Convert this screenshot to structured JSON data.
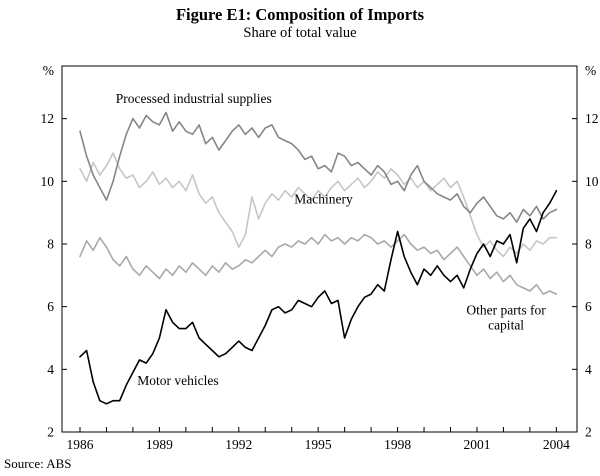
{
  "header": {
    "title": "Figure E1: Composition of Imports",
    "subtitle": "Share of total value"
  },
  "source": {
    "text": "Source: ABS"
  },
  "chart_data": {
    "type": "line",
    "title": "Figure E1: Composition of Imports",
    "subtitle": "Share of total value",
    "xlabel": "",
    "ylabel": "%",
    "grid": false,
    "legend": "inline-labels",
    "xlim": [
      1985.32,
      2004.78
    ],
    "ylim": [
      2,
      13.68
    ],
    "y_ticks": [
      2,
      4,
      6,
      8,
      10,
      12
    ],
    "x_ticks_labeled": [
      1986,
      1989,
      1992,
      1995,
      1998,
      2001,
      2004
    ],
    "x_ticks_minor": [
      1986,
      1987,
      1988,
      1989,
      1990,
      1991,
      1992,
      1993,
      1994,
      1995,
      1996,
      1997,
      1998,
      1999,
      2000,
      2001,
      2002,
      2003,
      2004
    ],
    "x": [
      1986,
      1986.25,
      1986.5,
      1986.75,
      1987,
      1987.25,
      1987.5,
      1987.75,
      1988,
      1988.25,
      1988.5,
      1988.75,
      1989,
      1989.25,
      1989.5,
      1989.75,
      1990,
      1990.25,
      1990.5,
      1990.75,
      1991,
      1991.25,
      1991.5,
      1991.75,
      1992,
      1992.25,
      1992.5,
      1992.75,
      1993,
      1993.25,
      1993.5,
      1993.75,
      1994,
      1994.25,
      1994.5,
      1994.75,
      1995,
      1995.25,
      1995.5,
      1995.75,
      1996,
      1996.25,
      1996.5,
      1996.75,
      1997,
      1997.25,
      1997.5,
      1997.75,
      1998,
      1998.25,
      1998.5,
      1998.75,
      1999,
      1999.25,
      1999.5,
      1999.75,
      2000,
      2000.25,
      2000.5,
      2000.75,
      2001,
      2001.25,
      2001.5,
      2001.75,
      2002,
      2002.25,
      2002.5,
      2002.75,
      2003,
      2003.25,
      2003.5,
      2003.75,
      2004
    ],
    "series": [
      {
        "name": "Machinery",
        "color": "#c6c6c6",
        "values": [
          10.4,
          10.0,
          10.6,
          10.2,
          10.5,
          10.9,
          10.4,
          10.1,
          10.2,
          9.8,
          10.0,
          10.3,
          9.9,
          10.1,
          9.8,
          10.0,
          9.7,
          10.2,
          9.6,
          9.3,
          9.5,
          9.0,
          8.7,
          8.4,
          7.9,
          8.3,
          9.5,
          8.8,
          9.3,
          9.6,
          9.4,
          9.7,
          9.5,
          9.8,
          9.6,
          9.4,
          9.7,
          9.5,
          9.8,
          10.0,
          9.7,
          9.9,
          10.1,
          9.8,
          10.0,
          10.3,
          10.1,
          10.4,
          10.2,
          9.9,
          10.1,
          9.8,
          10.0,
          9.7,
          9.9,
          10.1,
          9.8,
          10.0,
          9.5,
          8.9,
          8.3,
          7.9,
          8.1,
          7.8,
          7.6,
          7.9,
          7.7,
          8.0,
          7.8,
          8.1,
          8.0,
          8.2,
          8.2
        ]
      },
      {
        "name": "Other parts for capital",
        "color": "#a9a9a9",
        "values": [
          7.6,
          8.1,
          7.8,
          8.2,
          7.9,
          7.5,
          7.3,
          7.6,
          7.2,
          7.0,
          7.3,
          7.1,
          6.9,
          7.2,
          7.0,
          7.3,
          7.1,
          7.4,
          7.2,
          7.0,
          7.3,
          7.1,
          7.4,
          7.2,
          7.3,
          7.5,
          7.4,
          7.6,
          7.8,
          7.6,
          7.9,
          8.0,
          7.9,
          8.1,
          8.0,
          8.2,
          8.0,
          8.3,
          8.1,
          8.2,
          8.0,
          8.2,
          8.1,
          8.3,
          8.2,
          8.0,
          8.1,
          7.9,
          8.1,
          8.3,
          8.0,
          7.8,
          7.9,
          7.7,
          7.8,
          7.5,
          7.7,
          7.9,
          7.6,
          7.3,
          7.0,
          7.2,
          6.9,
          7.1,
          6.8,
          7.0,
          6.7,
          6.6,
          6.5,
          6.7,
          6.4,
          6.5,
          6.4
        ]
      },
      {
        "name": "Processed industrial supplies",
        "color": "#868686",
        "values": [
          11.6,
          10.8,
          10.2,
          9.8,
          9.4,
          10.0,
          10.8,
          11.5,
          12.0,
          11.7,
          12.1,
          11.9,
          11.8,
          12.2,
          11.6,
          11.9,
          11.6,
          11.5,
          11.8,
          11.2,
          11.4,
          11.0,
          11.3,
          11.6,
          11.8,
          11.5,
          11.7,
          11.4,
          11.7,
          11.8,
          11.4,
          11.3,
          11.2,
          11.0,
          10.7,
          10.8,
          10.4,
          10.5,
          10.3,
          10.9,
          10.8,
          10.5,
          10.6,
          10.4,
          10.2,
          10.5,
          10.3,
          9.9,
          10.0,
          9.7,
          10.2,
          10.5,
          10.0,
          9.8,
          9.6,
          9.5,
          9.4,
          9.6,
          9.2,
          9.0,
          9.3,
          9.5,
          9.2,
          8.9,
          8.8,
          9.0,
          8.7,
          9.1,
          8.9,
          9.2,
          8.8,
          9.0,
          9.1
        ]
      },
      {
        "name": "Motor vehicles",
        "color": "#000000",
        "values": [
          4.4,
          4.6,
          3.6,
          3.0,
          2.9,
          3.0,
          3.0,
          3.5,
          3.9,
          4.3,
          4.2,
          4.5,
          5.0,
          5.9,
          5.5,
          5.3,
          5.3,
          5.5,
          5.0,
          4.8,
          4.6,
          4.4,
          4.5,
          4.7,
          4.9,
          4.7,
          4.6,
          5.0,
          5.4,
          5.9,
          6.0,
          5.8,
          5.9,
          6.2,
          6.1,
          6.0,
          6.3,
          6.5,
          6.1,
          6.2,
          5.0,
          5.6,
          6.0,
          6.3,
          6.4,
          6.7,
          6.5,
          7.5,
          8.4,
          7.6,
          7.1,
          6.7,
          7.2,
          7.0,
          7.3,
          7.0,
          6.8,
          7.0,
          6.6,
          7.2,
          7.7,
          8.0,
          7.6,
          8.1,
          8.0,
          8.3,
          7.4,
          8.5,
          8.8,
          8.4,
          9.0,
          9.3,
          9.7
        ]
      }
    ],
    "annotations": [
      {
        "lines": [
          "Processed industrial supplies"
        ],
        "x": 1990.3,
        "y": 12.5
      },
      {
        "lines": [
          "Machinery"
        ],
        "x": 1995.2,
        "y": 9.3
      },
      {
        "lines": [
          "Other parts for",
          "capital"
        ],
        "x": 2002.1,
        "y": 5.75
      },
      {
        "lines": [
          "Motor vehicles"
        ],
        "x": 1989.7,
        "y": 3.5
      }
    ]
  }
}
